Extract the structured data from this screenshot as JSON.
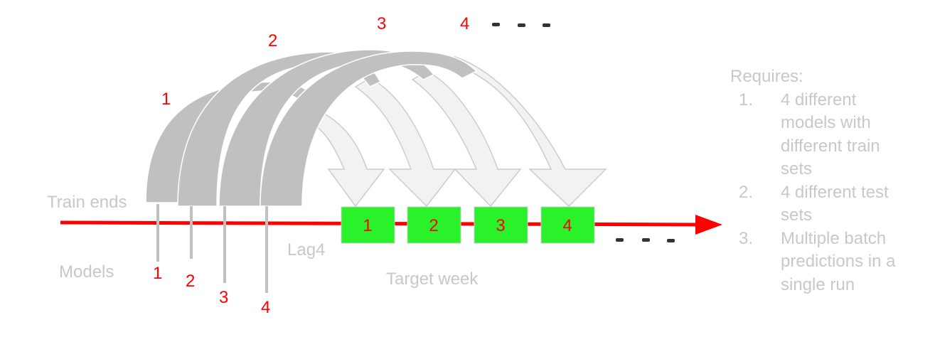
{
  "labels": {
    "train_ends": "Train ends",
    "models": "Models",
    "lag": "Lag4",
    "target_week": "Target week"
  },
  "arc_numbers": [
    "1",
    "2",
    "3",
    "4"
  ],
  "model_numbers": [
    "1",
    "2",
    "3",
    "4"
  ],
  "target_boxes": [
    "1",
    "2",
    "3",
    "4"
  ],
  "requires": {
    "heading": "Requires:",
    "items": [
      {
        "num": "1.",
        "lines": [
          "4 different",
          "models with",
          "different train",
          "sets"
        ]
      },
      {
        "num": "2.",
        "lines": [
          "4 different test",
          "sets"
        ]
      },
      {
        "num": "3.",
        "lines": [
          "Multiple batch",
          "predictions in a",
          "single run"
        ]
      }
    ]
  },
  "colors": {
    "timeline": "#ff0000",
    "target_box": "#2af22a",
    "arc_fill": "#c0c0c0",
    "arrow_fill": "#f2f2f2",
    "label_gray": "#c8c8c8",
    "number_red": "#ff0000"
  }
}
